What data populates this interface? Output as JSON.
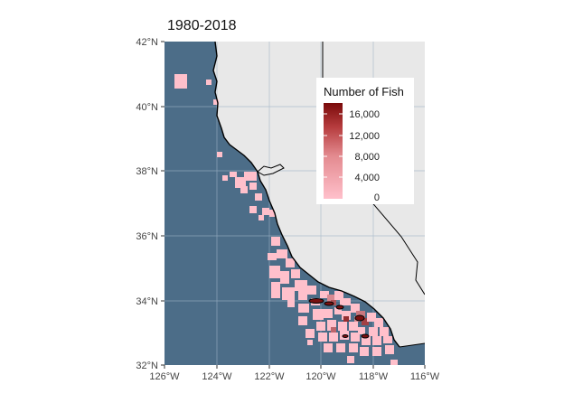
{
  "map": {
    "title": "1980-2018",
    "lat_labels": [
      "32°N",
      "34°N",
      "36°N",
      "38°N",
      "40°N",
      "42°N"
    ],
    "lon_labels": [
      "126°W",
      "124°W",
      "122°W",
      "120°W",
      "118°W",
      "116°W"
    ],
    "lat_range": [
      32,
      42
    ],
    "lon_range": [
      -126,
      -116
    ],
    "grid": true,
    "colors": {
      "ocean": "#4c6d88",
      "land": "#e8e8e8",
      "grid": "#9fb4c6",
      "low": "#ffc0cb",
      "high": "#7a0a0a"
    }
  },
  "legend": {
    "title": "Number of Fish",
    "breaks": [
      "16,000",
      "12,000",
      "8,000",
      "4,000",
      "0"
    ],
    "range": [
      0,
      18000
    ],
    "placement": "top-right"
  }
}
